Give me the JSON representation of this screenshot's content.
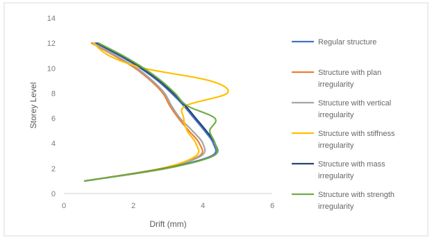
{
  "chart_data": {
    "type": "line",
    "title": "",
    "xlabel": "Drift (mm)",
    "ylabel": "Storey Level",
    "xlim": [
      0,
      6
    ],
    "ylim": [
      0,
      14
    ],
    "xticks": [
      0,
      2,
      4,
      6
    ],
    "yticks": [
      0,
      2,
      4,
      6,
      8,
      10,
      12,
      14
    ],
    "grid": false,
    "legend_position": "right",
    "series": [
      {
        "name": "Regular structure",
        "name_lines": [
          "Regular structure"
        ],
        "color": "#4472C4",
        "points": [
          [
            0.6,
            1
          ],
          [
            2.9,
            2
          ],
          [
            4.25,
            3
          ],
          [
            4.3,
            4
          ],
          [
            4.05,
            5
          ],
          [
            3.75,
            6
          ],
          [
            3.45,
            7
          ],
          [
            3.1,
            8
          ],
          [
            2.7,
            9
          ],
          [
            2.2,
            10
          ],
          [
            1.6,
            11
          ],
          [
            0.9,
            12
          ]
        ]
      },
      {
        "name": "Structure with plan irregularity",
        "name_lines": [
          "Structure with plan",
          "irregularity"
        ],
        "color": "#ED7D31",
        "points": [
          [
            0.6,
            1
          ],
          [
            2.8,
            2
          ],
          [
            3.9,
            3
          ],
          [
            3.9,
            4
          ],
          [
            3.6,
            5
          ],
          [
            3.3,
            6
          ],
          [
            3.05,
            7
          ],
          [
            2.85,
            8
          ],
          [
            2.5,
            9
          ],
          [
            2.05,
            10
          ],
          [
            1.45,
            11
          ],
          [
            0.8,
            12
          ]
        ]
      },
      {
        "name": "Structure with vertical irregularity",
        "name_lines": [
          "Structure with vertical",
          "irregularity"
        ],
        "color": "#A5A5A5",
        "points": [
          [
            0.6,
            1
          ],
          [
            2.85,
            2
          ],
          [
            3.95,
            3
          ],
          [
            4.0,
            4
          ],
          [
            3.7,
            5
          ],
          [
            3.35,
            6
          ],
          [
            3.1,
            7
          ],
          [
            2.9,
            8
          ],
          [
            2.55,
            9
          ],
          [
            2.1,
            10
          ],
          [
            1.5,
            11
          ],
          [
            0.85,
            12
          ]
        ]
      },
      {
        "name": "Structure with stiffness irregularity",
        "name_lines": [
          "Structure with stiffness",
          "irregularity"
        ],
        "color": "#FFC000",
        "points": [
          [
            0.6,
            1
          ],
          [
            2.8,
            2
          ],
          [
            3.8,
            3
          ],
          [
            3.8,
            4
          ],
          [
            3.55,
            5
          ],
          [
            3.45,
            6
          ],
          [
            3.5,
            7
          ],
          [
            4.7,
            8
          ],
          [
            4.2,
            9
          ],
          [
            2.3,
            10
          ],
          [
            1.3,
            11
          ],
          [
            0.85,
            12
          ]
        ]
      },
      {
        "name": "Structure with mass irregularity",
        "name_lines": [
          "Structure with mass",
          "irregularity"
        ],
        "color": "#264478",
        "points": [
          [
            0.6,
            1
          ],
          [
            2.9,
            2
          ],
          [
            4.3,
            3
          ],
          [
            4.35,
            4
          ],
          [
            4.1,
            5
          ],
          [
            3.8,
            6
          ],
          [
            3.5,
            7
          ],
          [
            3.15,
            8
          ],
          [
            2.75,
            9
          ],
          [
            2.25,
            10
          ],
          [
            1.65,
            11
          ],
          [
            0.95,
            12
          ]
        ]
      },
      {
        "name": "Structure with strength irregularity",
        "name_lines": [
          "Structure with strength",
          "irregularity"
        ],
        "color": "#70AD47",
        "points": [
          [
            0.6,
            1
          ],
          [
            2.95,
            2
          ],
          [
            4.3,
            3
          ],
          [
            4.35,
            4
          ],
          [
            4.2,
            5
          ],
          [
            4.35,
            6
          ],
          [
            3.55,
            7
          ],
          [
            3.2,
            8
          ],
          [
            2.8,
            9
          ],
          [
            2.3,
            10
          ],
          [
            1.7,
            11
          ],
          [
            1.0,
            12
          ]
        ]
      }
    ]
  }
}
